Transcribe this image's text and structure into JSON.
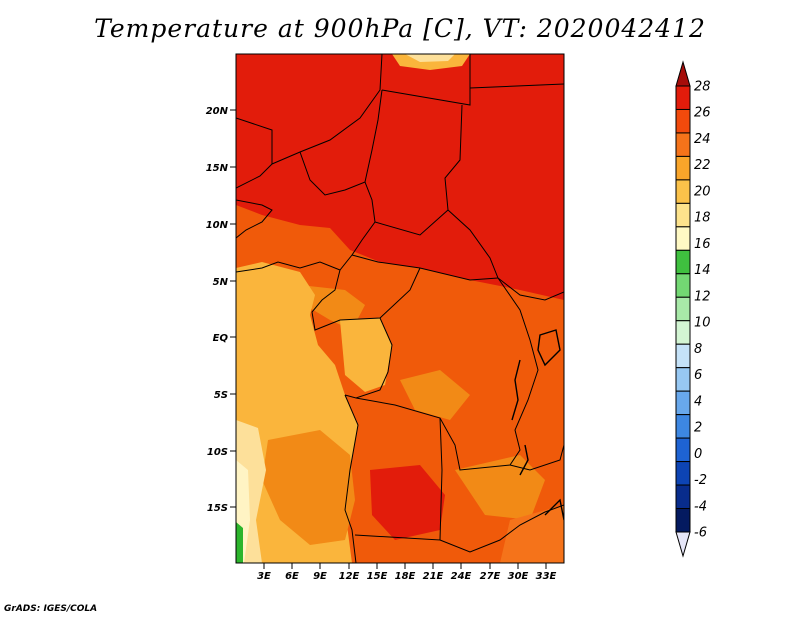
{
  "title": "Temperature at 900hPa [C], VT: 2020042412",
  "credit": "GrADS: IGES/COLA",
  "map": {
    "region": "Central Africa",
    "lat_labels": [
      "20N",
      "15N",
      "10N",
      "5N",
      "EQ",
      "5S",
      "10S",
      "15S"
    ],
    "lon_labels": [
      "3E",
      "6E",
      "9E",
      "12E",
      "15E",
      "18E",
      "21E",
      "24E",
      "27E",
      "30E",
      "33E"
    ],
    "fields": {
      "north_hot": "#e21c0b",
      "central_orange": "#f05a0a",
      "atlantic_warm": "#fab53c",
      "south_orange": "#f28a16",
      "southwest_light": "#fde09a",
      "coastal_pale": "#fff4c4",
      "green_corner": "#2cb52c"
    }
  },
  "colorbar": {
    "levels": [
      "28",
      "26",
      "24",
      "22",
      "20",
      "18",
      "16",
      "14",
      "12",
      "10",
      "8",
      "6",
      "4",
      "2",
      "0",
      "-2",
      "-4",
      "-6"
    ],
    "colors": [
      "#a50d0a",
      "#e21c0b",
      "#f24a0c",
      "#f5731a",
      "#f9a52a",
      "#fbc24a",
      "#fde38c",
      "#fff9c4",
      "#3fc03f",
      "#73d873",
      "#a8e9a8",
      "#d3f5d3",
      "#c5e2f8",
      "#97c8f3",
      "#68a8ec",
      "#3d87e2",
      "#1e63d3",
      "#0d44b4",
      "#082c8c",
      "#041a60",
      "#e6e6f8"
    ]
  }
}
